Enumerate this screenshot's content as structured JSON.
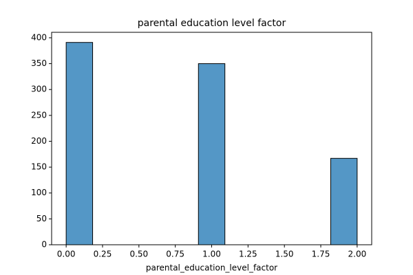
{
  "chart_data": {
    "type": "histogram",
    "title": "parental education level factor",
    "x_label": "parental_education_level_factor",
    "bins": [
      0,
      0.1818,
      0.3636,
      0.5455,
      0.7273,
      0.9091,
      1.0909,
      1.2727,
      1.4545,
      1.6364,
      1.8182,
      2.0
    ],
    "values": [
      391,
      0,
      0,
      0,
      0,
      350,
      0,
      0,
      0,
      0,
      167
    ],
    "color": "#5497c6",
    "edgecolor": "#000000",
    "xlim": [
      -0.1,
      2.1
    ],
    "xticks": [
      {
        "value": 0,
        "label": "0.00"
      },
      {
        "value": 0.25,
        "label": "0.25"
      },
      {
        "value": 0.5,
        "label": "0.50"
      },
      {
        "value": 0.75,
        "label": "0.75"
      },
      {
        "value": 1,
        "label": "1.00"
      },
      {
        "value": 1.25,
        "label": "1.25"
      },
      {
        "value": 1.5,
        "label": "1.50"
      },
      {
        "value": 1.75,
        "label": "1.75"
      },
      {
        "value": 2,
        "label": "2.00"
      }
    ],
    "ylim": [
      0,
      410.55
    ],
    "yticks": [
      0,
      50,
      100,
      150,
      200,
      250,
      300,
      350,
      400
    ]
  }
}
